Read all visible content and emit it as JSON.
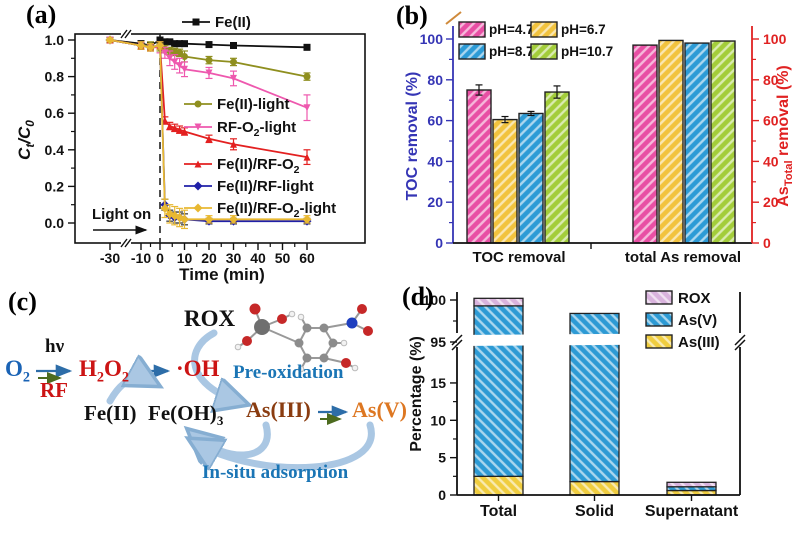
{
  "panels": {
    "a": {
      "label": "(a)"
    },
    "b": {
      "label": "(b)"
    },
    "c": {
      "label": "(c)"
    },
    "d": {
      "label": "(d)"
    }
  },
  "chart_data": [
    {
      "panel": "a",
      "type": "line",
      "xlabel": "Time (min)",
      "ylabel": "C{t}/C{0}",
      "xticks": [
        -30,
        -10,
        0,
        10,
        20,
        30,
        40,
        50,
        60
      ],
      "yticks": [
        0.0,
        0.2,
        0.4,
        0.6,
        0.8,
        1.0
      ],
      "x_axis_break_between": [
        -30,
        -10
      ],
      "annotation": "Light on",
      "light_on_time": 0,
      "series": [
        {
          "name": "Fe(II)",
          "color": "#111111",
          "marker": "square",
          "x": [
            -30,
            -10,
            -5,
            0,
            2,
            4,
            6,
            8,
            10,
            20,
            30,
            60
          ],
          "y": [
            1.0,
            0.98,
            0.97,
            1.0,
            0.99,
            0.99,
            0.98,
            0.98,
            0.98,
            0.975,
            0.97,
            0.96
          ],
          "err": [
            0.01,
            0.015,
            0.015,
            0.01,
            0.01,
            0.01,
            0.01,
            0.01,
            0.01,
            0.01,
            0.01,
            0.012
          ]
        },
        {
          "name": "Fe(II)-light",
          "color": "#8f8f1f",
          "marker": "circle",
          "x": [
            -30,
            -10,
            -5,
            0,
            2,
            4,
            6,
            8,
            10,
            20,
            30,
            60
          ],
          "y": [
            1.0,
            0.97,
            0.97,
            0.96,
            0.95,
            0.94,
            0.935,
            0.93,
            0.91,
            0.89,
            0.88,
            0.8
          ],
          "err": [
            0.01,
            0.02,
            0.02,
            0.02,
            0.02,
            0.02,
            0.02,
            0.02,
            0.03,
            0.02,
            0.02,
            0.02
          ]
        },
        {
          "name": "RF-O{2}-light",
          "color": "#ee58ae",
          "marker": "triangle-down",
          "x": [
            -30,
            -10,
            -5,
            0,
            2,
            4,
            6,
            8,
            10,
            20,
            30,
            60
          ],
          "y": [
            1.0,
            0.97,
            0.96,
            0.96,
            0.93,
            0.9,
            0.88,
            0.86,
            0.84,
            0.82,
            0.79,
            0.63
          ],
          "err": [
            0.01,
            0.02,
            0.02,
            0.03,
            0.03,
            0.04,
            0.04,
            0.04,
            0.04,
            0.03,
            0.04,
            0.07
          ]
        },
        {
          "name": "Fe(II)/RF-O{2}",
          "color": "#e32020",
          "marker": "triangle-up",
          "x": [
            -30,
            -10,
            -5,
            0,
            2,
            4,
            6,
            8,
            10,
            20,
            30,
            60
          ],
          "y": [
            1.0,
            0.97,
            0.96,
            0.97,
            0.56,
            0.53,
            0.52,
            0.51,
            0.5,
            0.46,
            0.43,
            0.36
          ],
          "err": [
            0.01,
            0.02,
            0.02,
            0.02,
            0.02,
            0.02,
            0.02,
            0.02,
            0.02,
            0.02,
            0.03,
            0.04
          ]
        },
        {
          "name": "Fe(II)/RF-light",
          "color": "#2020a8",
          "marker": "diamond",
          "dashed_err": true,
          "x": [
            -30,
            -10,
            -5,
            0,
            2,
            4,
            6,
            8,
            10,
            20,
            30,
            60
          ],
          "y": [
            1.0,
            0.97,
            0.96,
            0.97,
            0.1,
            0.04,
            0.03,
            0.03,
            0.02,
            0.01,
            0.01,
            0.01
          ],
          "err": [
            0.01,
            0.02,
            0.02,
            0.02,
            0.03,
            0.03,
            0.03,
            0.03,
            0.03,
            0.015,
            0.015,
            0.015
          ]
        },
        {
          "name": "Fe(II)/RF-O{2}-light",
          "color": "#e8b832",
          "marker": "diamond",
          "x": [
            -30,
            -10,
            -5,
            0,
            2,
            4,
            6,
            8,
            10,
            20,
            30,
            60
          ],
          "y": [
            1.0,
            0.97,
            0.96,
            0.97,
            0.08,
            0.05,
            0.04,
            0.03,
            0.02,
            0.02,
            0.02,
            0.02
          ],
          "err": [
            0.01,
            0.02,
            0.02,
            0.02,
            0.05,
            0.05,
            0.05,
            0.05,
            0.05,
            0.02,
            0.02,
            0.02
          ]
        }
      ]
    },
    {
      "panel": "b",
      "type": "bar",
      "categories": [
        "TOC removal",
        "total As removal"
      ],
      "series": [
        {
          "name": "pH=4.7",
          "color": "#e84fa4",
          "values": [
            75,
            97
          ],
          "errors": [
            2.5,
            0
          ]
        },
        {
          "name": "pH=6.7",
          "color": "#f2c33e",
          "values": [
            60.5,
            99.3
          ],
          "errors": [
            1.5,
            0
          ]
        },
        {
          "name": "pH=8.7",
          "color": "#2c9bd6",
          "values": [
            63.5,
            98
          ],
          "errors": [
            1,
            0
          ]
        },
        {
          "name": "pH=10.7",
          "color": "#a3cd3a",
          "values": [
            74,
            99
          ],
          "errors": [
            3,
            0
          ]
        }
      ],
      "ylabel_left": "TOC removal (%)",
      "ylabel_right": "As{Total} removal (%)",
      "yticks": [
        0,
        20,
        40,
        60,
        80,
        100
      ],
      "left_axis_color": "#3535b5",
      "right_axis_color": "#e02222"
    },
    {
      "panel": "d",
      "type": "stacked_bar",
      "categories": [
        "Total",
        "Solid",
        "Supernatant"
      ],
      "ylabel": "Percentage (%)",
      "yticks_lower": [
        0,
        5,
        10,
        15
      ],
      "yticks_upper": [
        95,
        100
      ],
      "axis_break": [
        17,
        94
      ],
      "legend": [
        "ROX",
        "As(V)",
        "As(III)"
      ],
      "series": [
        {
          "name": "As(III)",
          "color": "#f0cd3f",
          "values": [
            2.5,
            1.8,
            0.6
          ]
        },
        {
          "name": "As(V)",
          "color": "#2d9ad4",
          "values": [
            96.8,
            96.6,
            0.5
          ]
        },
        {
          "name": "ROX",
          "color": "#d9b3dd",
          "values": [
            0.9,
            0,
            0.6
          ]
        }
      ]
    }
  ],
  "diagram": {
    "nodes": {
      "o2": "O{2}",
      "hv": "hν",
      "rf": "RF",
      "h2o2": "H{2}O{2}",
      "oh": "·OH",
      "rox": "ROX",
      "pre_oxidation": "Pre-oxidation",
      "fe2": "Fe(II)",
      "feoh3": "Fe(OH){3}",
      "as3": "As(III)",
      "as5": "As(V)",
      "in_situ": "In-situ adsorption"
    }
  }
}
